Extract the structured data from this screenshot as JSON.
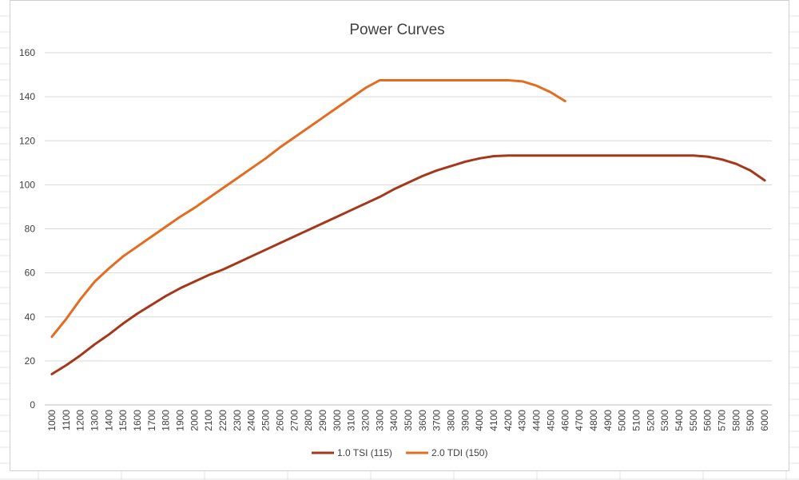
{
  "chart_data": {
    "type": "line",
    "title": "Power Curves",
    "xlabel": "",
    "ylabel": "",
    "x": [
      1000,
      1100,
      1200,
      1300,
      1400,
      1500,
      1600,
      1700,
      1800,
      1900,
      2000,
      2100,
      2200,
      2300,
      2400,
      2500,
      2600,
      2700,
      2800,
      2900,
      3000,
      3100,
      3200,
      3300,
      3400,
      3500,
      3600,
      3700,
      3800,
      3900,
      4000,
      4100,
      4200,
      4300,
      4400,
      4500,
      4600,
      4700,
      4800,
      4900,
      5000,
      5100,
      5200,
      5300,
      5400,
      5500,
      5600,
      5700,
      5800,
      5900,
      6000
    ],
    "ylim": [
      0,
      160
    ],
    "yticks": [
      0,
      20,
      40,
      60,
      80,
      100,
      120,
      140,
      160
    ],
    "grid": true,
    "legend_position": "bottom",
    "series": [
      {
        "name": "1.0 TSI (115)",
        "color": "#a5381a",
        "values": [
          14,
          18,
          22.5,
          27.5,
          32,
          37,
          41.5,
          45.5,
          49.5,
          53,
          56,
          59,
          61.5,
          64.5,
          67.5,
          70.5,
          73.5,
          76.5,
          79.5,
          82.5,
          85.5,
          88.5,
          91.5,
          94.5,
          98,
          101,
          104,
          106.5,
          108.5,
          110.5,
          112,
          113,
          113.3,
          113.3,
          113.3,
          113.3,
          113.3,
          113.3,
          113.3,
          113.3,
          113.3,
          113.3,
          113.3,
          113.3,
          113.3,
          113.3,
          112.8,
          111.5,
          109.5,
          106.5,
          102
        ]
      },
      {
        "name": "2.0 TDI (150)",
        "color": "#e46c21",
        "values": [
          31,
          39,
          48,
          56,
          62,
          67.5,
          72,
          76.5,
          81,
          85.5,
          89.5,
          94,
          98.5,
          103,
          107.5,
          112,
          117,
          121.5,
          126,
          130.5,
          135,
          139.5,
          144,
          147.5,
          147.5,
          147.5,
          147.5,
          147.5,
          147.5,
          147.5,
          147.5,
          147.5,
          147.5,
          147,
          145,
          142,
          138,
          null,
          null,
          null,
          null,
          null,
          null,
          null,
          null,
          null,
          null,
          null,
          null,
          null,
          null
        ]
      }
    ]
  }
}
